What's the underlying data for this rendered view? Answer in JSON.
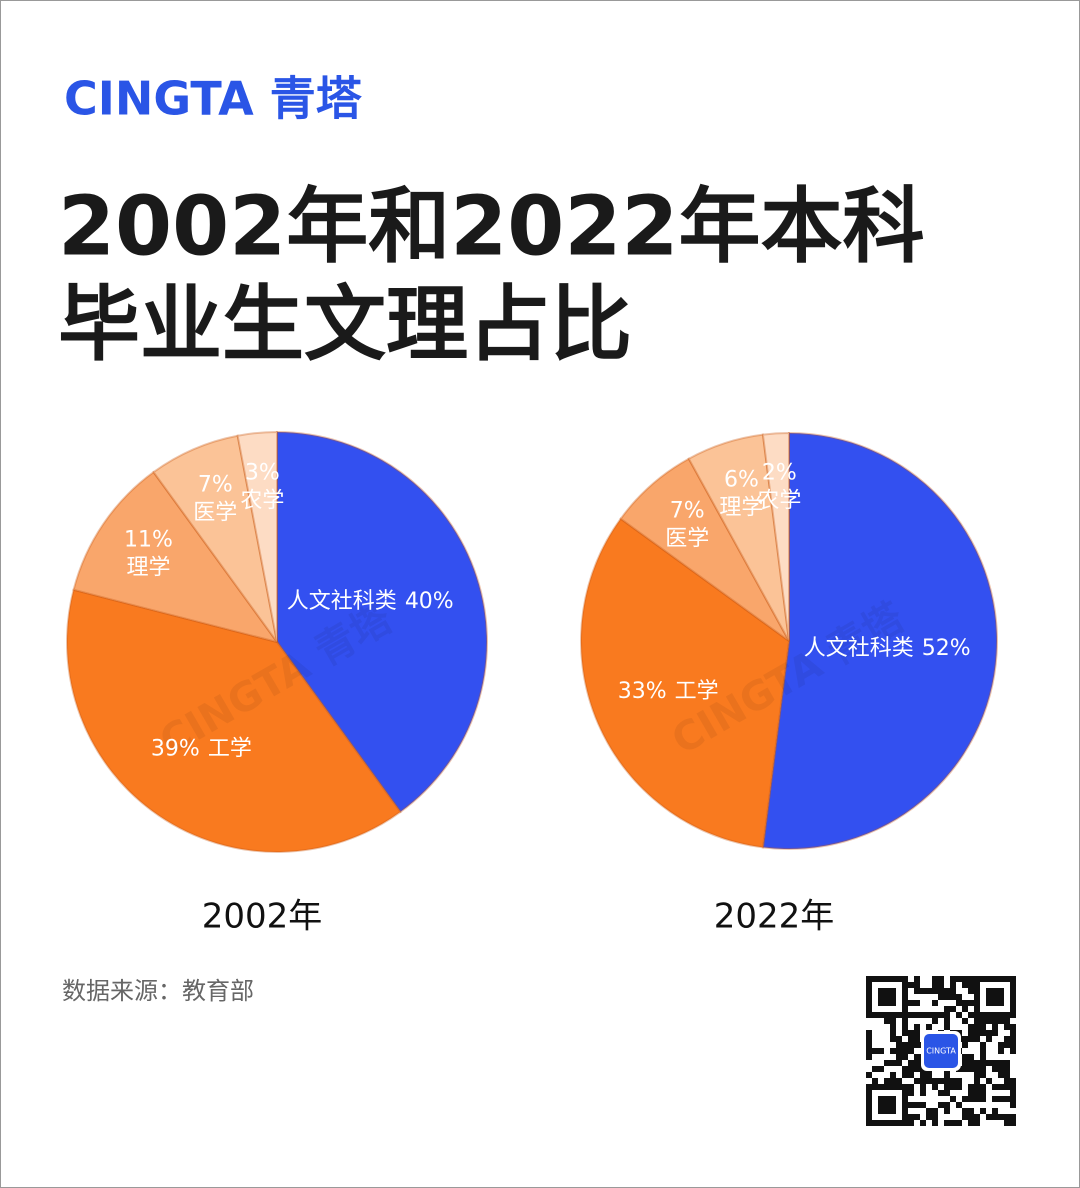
{
  "brand": "CINGTA 青塔",
  "title_lines": [
    "2002年和2022年本科",
    "毕业生文理占比"
  ],
  "source": "数据来源：教育部",
  "qr_label": "CINGTA",
  "chart_data": [
    {
      "type": "pie",
      "title": "2002年",
      "categories": [
        "人文社科类",
        "工学",
        "理学",
        "医学",
        "农学"
      ],
      "values": [
        40,
        39,
        11,
        7,
        3
      ],
      "value_labels": [
        "40%",
        "39%",
        "11%",
        "7%",
        "3%"
      ],
      "colors": [
        "#3350f0",
        "#f97a1f",
        "#f9a66b",
        "#fbc397",
        "#fddcc4"
      ]
    },
    {
      "type": "pie",
      "title": "2022年",
      "categories": [
        "人文社科类",
        "工学",
        "医学",
        "理学",
        "农学"
      ],
      "values": [
        52,
        33,
        7,
        6,
        2
      ],
      "value_labels": [
        "52%",
        "33%",
        "7%",
        "6%",
        "2%"
      ],
      "colors": [
        "#3350f0",
        "#f97a1f",
        "#f9a66b",
        "#fbc397",
        "#fddcc4"
      ]
    }
  ]
}
